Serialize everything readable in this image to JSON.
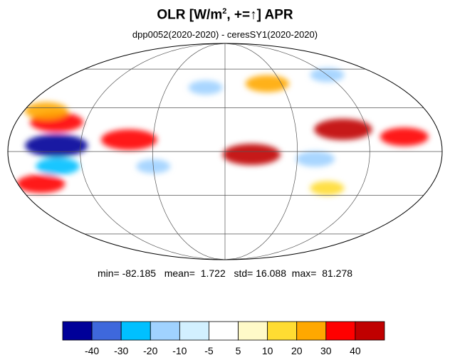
{
  "title": {
    "prefix": "OLR [W/m",
    "superscript": "2",
    "suffix": ", +=↑] APR"
  },
  "subtitle": "dpp0052(2020-2020) - ceresSY1(2020-2020)",
  "stats": {
    "min_label": "min=",
    "min": "-82.185",
    "mean_label": "mean=",
    "mean": "1.722",
    "std_label": "std=",
    "std": "16.088",
    "max_label": "max=",
    "max": "81.278"
  },
  "map": {
    "projection": "mollweide",
    "graticule": {
      "lat_step_deg": 30,
      "lon_step_deg": 60
    },
    "features": [
      {
        "name": "east-pacific-itcz-positive",
        "lon": -145,
        "lat": 20,
        "value": 35
      },
      {
        "name": "north-pacific-positive-band",
        "lon": -160,
        "lat": 28,
        "value": 25
      },
      {
        "name": "tropical-pacific-negative-band",
        "lon": -140,
        "lat": 4,
        "value": -45
      },
      {
        "name": "south-pacific-negative-band",
        "lon": -140,
        "lat": -10,
        "value": -25
      },
      {
        "name": "southeast-pacific-positive-band",
        "lon": -160,
        "lat": -22,
        "value": 30
      },
      {
        "name": "central-america-positive",
        "lon": -80,
        "lat": 8,
        "value": 38
      },
      {
        "name": "amazon-negative",
        "lon": -60,
        "lat": -10,
        "value": -15
      },
      {
        "name": "central-africa-positive",
        "lon": 22,
        "lat": -2,
        "value": 40
      },
      {
        "name": "arabia-positive",
        "lon": 45,
        "lat": 48,
        "value": 25
      },
      {
        "name": "southeast-asia-positive",
        "lon": 100,
        "lat": 15,
        "value": 40
      },
      {
        "name": "west-pacific-positive",
        "lon": 150,
        "lat": 10,
        "value": 30
      },
      {
        "name": "indian-ocean-negative",
        "lon": 75,
        "lat": -5,
        "value": -20
      },
      {
        "name": "south-indian-ocean-positive",
        "lon": 90,
        "lat": -25,
        "value": 15
      },
      {
        "name": "north-atlantic-negative",
        "lon": -20,
        "lat": 45,
        "value": -15
      },
      {
        "name": "siberia-negative",
        "lon": 120,
        "lat": 55,
        "value": -15
      }
    ]
  },
  "colorbar": {
    "colors": [
      "#000099",
      "#3e68dc",
      "#00c0ff",
      "#a0d2ff",
      "#d2f0ff",
      "#ffffff",
      "#fffac8",
      "#ffdc32",
      "#ffa800",
      "#ff0000",
      "#c00000"
    ],
    "ticks": [
      "-40",
      "-30",
      "-20",
      "-10",
      "-5",
      "5",
      "10",
      "20",
      "30",
      "40"
    ]
  }
}
